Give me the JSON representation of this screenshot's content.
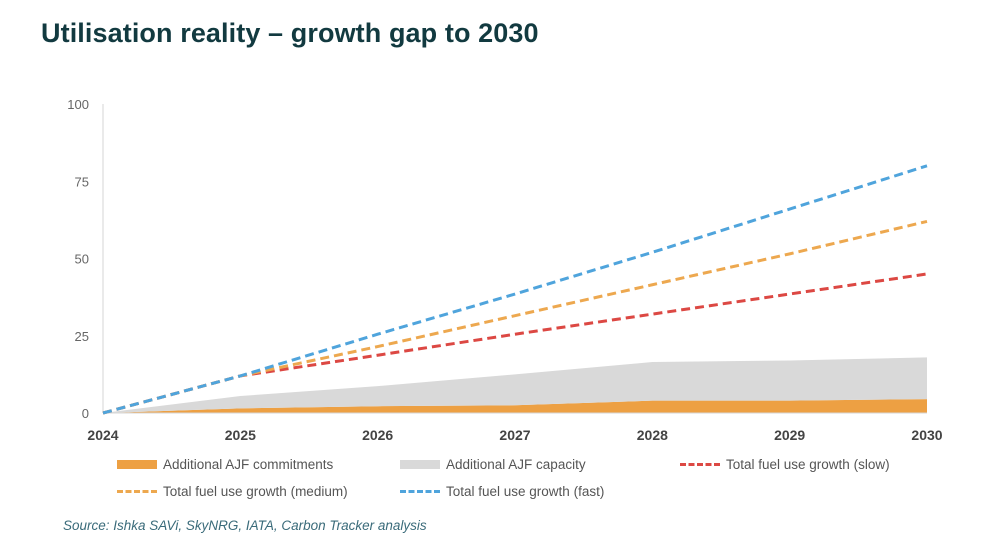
{
  "page_title": "Utilisation reality – growth gap to 2030",
  "source": "Source: Ishka SAVi, SkyNRG, IATA, Carbon Tracker analysis",
  "chart_data": {
    "type": "area",
    "title": "",
    "xlabel": "",
    "ylabel": "",
    "x": [
      2024,
      2025,
      2026,
      2027,
      2028,
      2029,
      2030
    ],
    "xlim": [
      2024,
      2030
    ],
    "ylim": [
      0,
      100
    ],
    "y_ticks": [
      0,
      25,
      50,
      75,
      100
    ],
    "grid": false,
    "legend_position": "bottom",
    "series": [
      {
        "name": "Additional AJF commitments",
        "kind": "area",
        "color": "#eda043",
        "values": [
          0,
          1.5,
          2.2,
          2.5,
          4.0,
          4.0,
          4.5
        ]
      },
      {
        "name": "Additional AJF capacity",
        "kind": "area",
        "color": "#d9d9d9",
        "values": [
          0,
          4,
          6.5,
          10,
          12.5,
          13,
          13.5
        ]
      },
      {
        "name": "Total fuel use growth (slow)",
        "kind": "dashed-line",
        "color": "#dc4843",
        "values": [
          0,
          12,
          18.7,
          25.5,
          32,
          38.5,
          45
        ]
      },
      {
        "name": "Total fuel use growth (medium)",
        "kind": "dashed-line",
        "color": "#eda84f",
        "values": [
          0,
          12,
          21.5,
          31.5,
          41.5,
          51.5,
          62
        ]
      },
      {
        "name": "Total fuel use growth (fast)",
        "kind": "dashed-line",
        "color": "#4fa4dc",
        "values": [
          0,
          12,
          25.5,
          38.5,
          52,
          66,
          80
        ]
      }
    ]
  }
}
